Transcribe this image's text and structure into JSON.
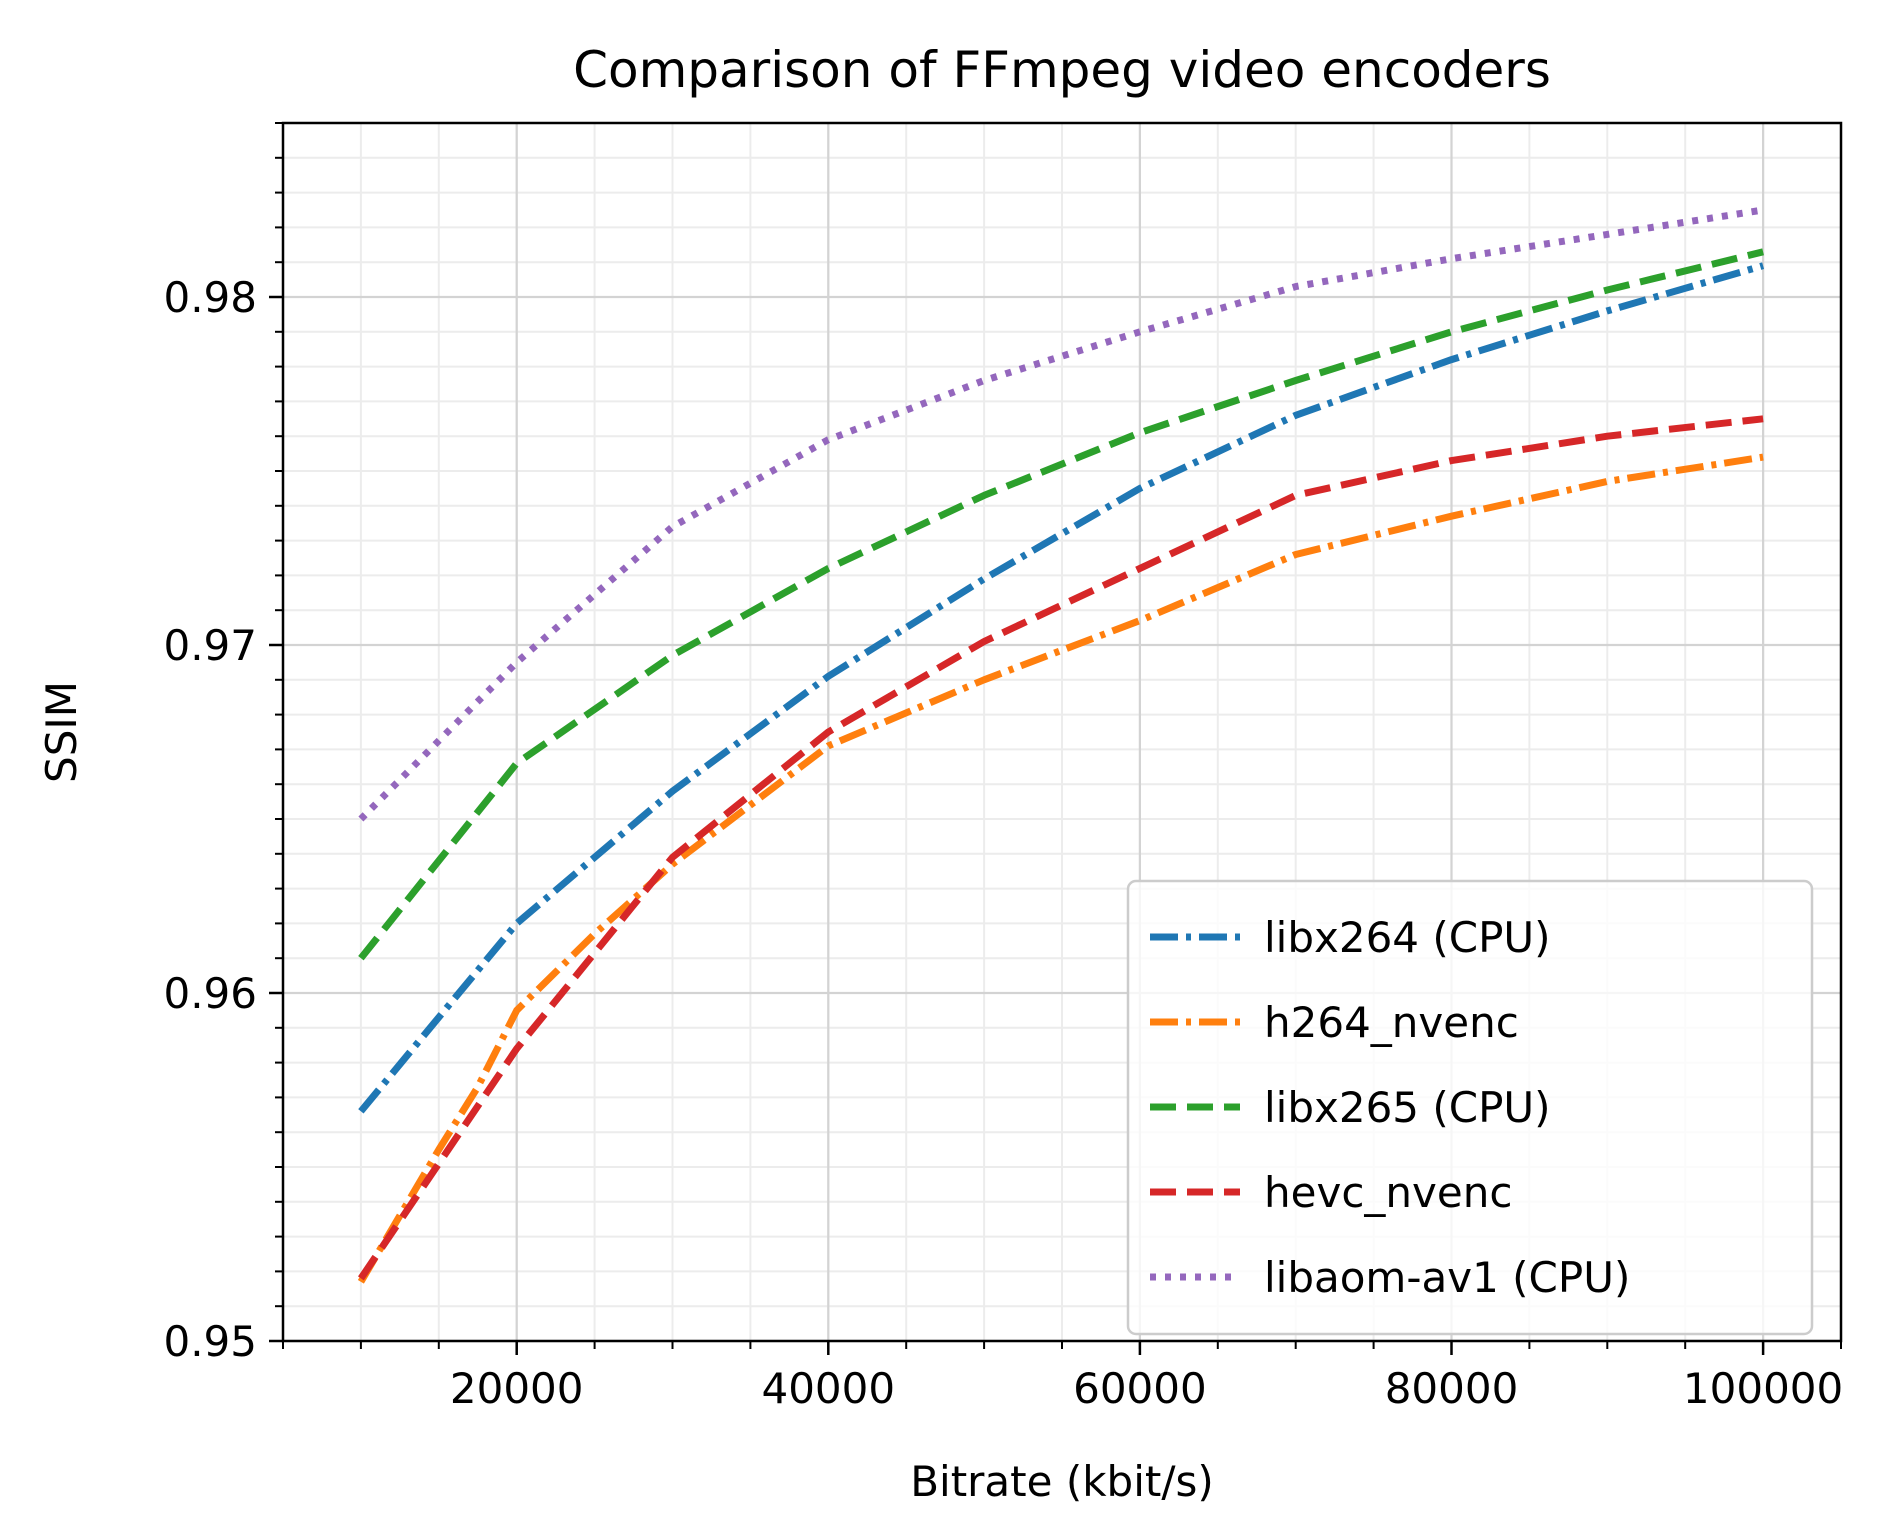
{
  "chart_data": {
    "type": "line",
    "title": "Comparison of FFmpeg video encoders",
    "xlabel": "Bitrate (kbit/s)",
    "ylabel": "SSIM",
    "xlim": [
      5000,
      105000
    ],
    "ylim": [
      0.95,
      0.985
    ],
    "xticks": [
      20000,
      40000,
      60000,
      80000,
      100000
    ],
    "xtick_labels": [
      "20000",
      "40000",
      "60000",
      "80000",
      "100000"
    ],
    "yticks": [
      0.95,
      0.96,
      0.97,
      0.98
    ],
    "ytick_labels": [
      "0.95",
      "0.96",
      "0.97",
      "0.98"
    ],
    "grid": "major and minor",
    "legend_position": "lower-right",
    "series": [
      {
        "name": "libx264 (CPU)",
        "color": "#1f77b4",
        "linestyle": "dashdot",
        "x": [
          10000,
          20000,
          30000,
          40000,
          50000,
          60000,
          70000,
          80000,
          90000,
          100000
        ],
        "y": [
          0.9566,
          0.962,
          0.9658,
          0.9691,
          0.9719,
          0.9745,
          0.9766,
          0.9782,
          0.9796,
          0.9809
        ]
      },
      {
        "name": "h264_nvenc",
        "color": "#ff7f0e",
        "linestyle": "dashdot",
        "x": [
          10000,
          15000,
          17500,
          20000,
          25000,
          30000,
          40000,
          50000,
          60000,
          70000,
          80000,
          90000,
          100000
        ],
        "y": [
          0.9517,
          0.9555,
          0.9573,
          0.9595,
          0.9617,
          0.9637,
          0.9671,
          0.969,
          0.9707,
          0.9726,
          0.9737,
          0.9747,
          0.9754
        ]
      },
      {
        "name": "libx265 (CPU)",
        "color": "#2ca02c",
        "linestyle": "dashed",
        "x": [
          10000,
          20000,
          30000,
          40000,
          50000,
          60000,
          70000,
          80000,
          90000,
          100000
        ],
        "y": [
          0.961,
          0.9666,
          0.9697,
          0.9722,
          0.9743,
          0.9761,
          0.9776,
          0.979,
          0.9802,
          0.9813
        ]
      },
      {
        "name": "hevc_nvenc",
        "color": "#d62728",
        "linestyle": "dashed",
        "x": [
          10000,
          20000,
          30000,
          40000,
          50000,
          60000,
          70000,
          80000,
          90000,
          100000
        ],
        "y": [
          0.9518,
          0.9584,
          0.9639,
          0.9675,
          0.9701,
          0.9722,
          0.9743,
          0.9753,
          0.976,
          0.9765
        ]
      },
      {
        "name": "libaom-av1 (CPU)",
        "color": "#9467bd",
        "linestyle": "dotted",
        "x": [
          10000,
          20000,
          30000,
          40000,
          50000,
          60000,
          70000,
          80000,
          90000,
          100000
        ],
        "y": [
          0.965,
          0.9695,
          0.9734,
          0.9759,
          0.9776,
          0.979,
          0.9803,
          0.9811,
          0.9818,
          0.9825
        ]
      }
    ]
  }
}
